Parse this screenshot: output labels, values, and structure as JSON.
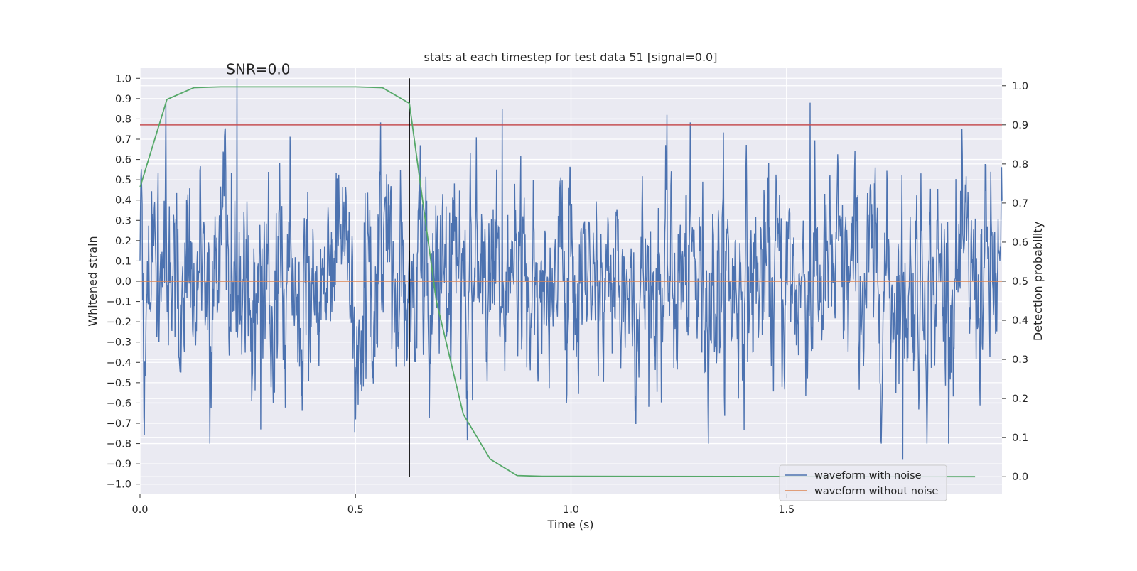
{
  "chart_data": {
    "type": "line",
    "title": "stats at each timestep for test data 51 [signal=0.0]",
    "xlabel": "Time (s)",
    "ylabel": "Whitened strain",
    "y2label": "Detection probability",
    "xlim": [
      0.0,
      2.0
    ],
    "ylim": [
      -1.05,
      1.05
    ],
    "y2lim": [
      -0.045,
      1.045
    ],
    "xticks": [
      0.0,
      0.5,
      1.0,
      1.5
    ],
    "xtick_labels": [
      "0.0",
      "0.5",
      "1.0",
      "1.5"
    ],
    "yticks": [
      1.0,
      0.9,
      0.8,
      0.7,
      0.6,
      0.5,
      0.4,
      0.3,
      0.2,
      0.1,
      0.0,
      -0.1,
      -0.2,
      -0.3,
      -0.4,
      -0.5,
      -0.6,
      -0.7,
      -0.8,
      -0.9,
      -1.0
    ],
    "ytick_labels": [
      "1.0",
      "0.9",
      "0.8",
      "0.7",
      "0.6",
      "0.5",
      "0.4",
      "0.3",
      "0.2",
      "0.1",
      "0.0",
      "−0.1",
      "−0.2",
      "−0.3",
      "−0.4",
      "−0.5",
      "−0.6",
      "−0.7",
      "−0.8",
      "−0.9",
      "−1.0"
    ],
    "y2ticks": [
      1.0,
      0.9,
      0.8,
      0.7,
      0.6,
      0.5,
      0.4,
      0.3,
      0.2,
      0.1,
      0.0
    ],
    "y2tick_labels": [
      "1.0",
      "0.9",
      "0.8",
      "0.7",
      "0.6",
      "0.5",
      "0.4",
      "0.3",
      "0.2",
      "0.1",
      "0.0"
    ],
    "annotation": "SNR=0.0",
    "annotation_at": {
      "x": 0.2,
      "y": 1.02
    },
    "grid": true,
    "legend_position": "lower-right",
    "noise_series": {
      "name": "waveform with noise",
      "color": "#4c72b0",
      "samples": 2000,
      "duration": 2.0,
      "amplitude_sigma": 0.28,
      "spike_values": [
        [
          0.225,
          1.0
        ],
        [
          0.06,
          0.88
        ],
        [
          1.555,
          0.88
        ],
        [
          0.84,
          0.85
        ],
        [
          1.77,
          -0.88
        ],
        [
          0.28,
          -0.73
        ]
      ]
    },
    "clean_series": {
      "name": "waveform without noise",
      "color": "#dd8452",
      "value": 0.0
    },
    "probability_series": {
      "name": "detection probability",
      "color": "#55a868",
      "axis": "right",
      "x": [
        0.0,
        0.0625,
        0.125,
        0.1875,
        0.25,
        0.3125,
        0.375,
        0.4375,
        0.5,
        0.5625,
        0.625,
        0.6875,
        0.75,
        0.8125,
        0.875,
        0.9375,
        1.0,
        1.9375
      ],
      "y": [
        0.74,
        0.965,
        0.995,
        0.997,
        0.997,
        0.997,
        0.997,
        0.997,
        0.997,
        0.995,
        0.955,
        0.45,
        0.16,
        0.045,
        0.003,
        0.001,
        0.001,
        0.0
      ]
    },
    "threshold": {
      "value": 0.9,
      "axis": "right",
      "color": "#c44e52"
    },
    "vertical_line": {
      "x": 0.625,
      "color": "#000000"
    }
  }
}
